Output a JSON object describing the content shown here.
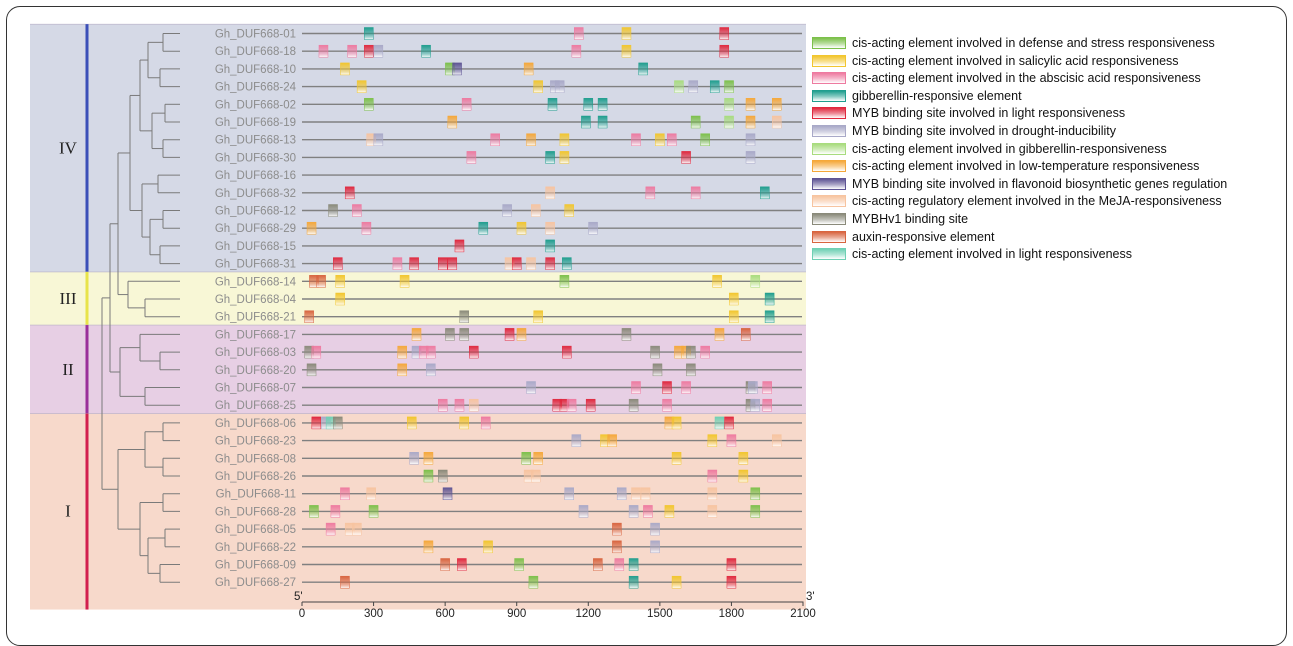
{
  "groups": [
    {
      "label": "IV",
      "color": "#d5d9e6",
      "bar": "#3b4fb8"
    },
    {
      "label": "III",
      "color": "#f8f7d6",
      "bar": "#e8e34a"
    },
    {
      "label": "II",
      "color": "#e7cfe4",
      "bar": "#9a2f9a"
    },
    {
      "label": "I",
      "color": "#f7d9cb",
      "bar": "#d21f4e"
    }
  ],
  "axis": {
    "start_label": "5'",
    "end_label": "3'",
    "min": 0,
    "max": 2100,
    "ticks": [
      "0",
      "300",
      "600",
      "900",
      "1200",
      "1500",
      "1800",
      "2100"
    ]
  },
  "legend": [
    {
      "key": "defense",
      "label": "cis-acting element involved in defense and stress responsiveness",
      "color": "#7cc04a"
    },
    {
      "key": "sa",
      "label": "cis-acting element involved in salicylic acid responsiveness",
      "color": "#f2c62e"
    },
    {
      "key": "aba",
      "label": "cis-acting element involved in the abscisic acid responsiveness",
      "color": "#ee7aa0"
    },
    {
      "key": "ga",
      "label": "gibberellin-responsive element",
      "color": "#1f9e8e"
    },
    {
      "key": "mybl",
      "label": "MYB binding site involved in light responsiveness",
      "color": "#e0283e"
    },
    {
      "key": "mybd",
      "label": "MYB binding site involved in drought-inducibility",
      "color": "#a9a9c8"
    },
    {
      "key": "gar",
      "label": "cis-acting element involved in gibberellin-responsiveness",
      "color": "#a8dc7e"
    },
    {
      "key": "lt",
      "label": "cis-acting element involved in low-temperature responsiveness",
      "color": "#f5a83a"
    },
    {
      "key": "mybf",
      "label": "MYB binding site involved in flavonoid biosynthetic genes regulation",
      "color": "#5e5494"
    },
    {
      "key": "meja",
      "label": "cis-acting regulatory element involved in the MeJA-responsiveness",
      "color": "#f7c4a0"
    },
    {
      "key": "mybh",
      "label": "MYBHv1 binding site",
      "color": "#8a8a7a"
    },
    {
      "key": "aux",
      "label": "auxin-responsive element",
      "color": "#d8643f"
    },
    {
      "key": "light",
      "label": "cis-acting element involved in light responsiveness",
      "color": "#6fd0b4"
    }
  ],
  "genes": [
    {
      "name": "Gh_DUF668-01",
      "group": "IV",
      "elements": [
        [
          "ga",
          280
        ],
        [
          "aba",
          1160
        ],
        [
          "sa",
          1360
        ],
        [
          "mybl",
          1770
        ]
      ]
    },
    {
      "name": "Gh_DUF668-18",
      "group": "IV",
      "elements": [
        [
          "aba",
          90
        ],
        [
          "aba",
          210
        ],
        [
          "mybl",
          280
        ],
        [
          "mybd",
          320
        ],
        [
          "ga",
          520
        ],
        [
          "aba",
          1150
        ],
        [
          "sa",
          1360
        ],
        [
          "mybl",
          1770
        ]
      ]
    },
    {
      "name": "Gh_DUF668-10",
      "group": "IV",
      "elements": [
        [
          "sa",
          180
        ],
        [
          "defense",
          620
        ],
        [
          "mybf",
          650
        ],
        [
          "lt",
          950
        ],
        [
          "ga",
          1430
        ]
      ]
    },
    {
      "name": "Gh_DUF668-24",
      "group": "IV",
      "elements": [
        [
          "sa",
          250
        ],
        [
          "sa",
          990
        ],
        [
          "mybd",
          1060
        ],
        [
          "mybd",
          1080
        ],
        [
          "gar",
          1580
        ],
        [
          "mybd",
          1640
        ],
        [
          "ga",
          1730
        ],
        [
          "defense",
          1790
        ]
      ]
    },
    {
      "name": "Gh_DUF668-02",
      "group": "IV",
      "elements": [
        [
          "defense",
          280
        ],
        [
          "aba",
          690
        ],
        [
          "ga",
          1050
        ],
        [
          "ga",
          1200
        ],
        [
          "ga",
          1260
        ],
        [
          "gar",
          1790
        ],
        [
          "lt",
          1880
        ],
        [
          "lt",
          1990
        ]
      ]
    },
    {
      "name": "Gh_DUF668-19",
      "group": "IV",
      "elements": [
        [
          "lt",
          630
        ],
        [
          "ga",
          1190
        ],
        [
          "ga",
          1260
        ],
        [
          "defense",
          1650
        ],
        [
          "gar",
          1790
        ],
        [
          "lt",
          1880
        ],
        [
          "meja",
          1990
        ]
      ]
    },
    {
      "name": "Gh_DUF668-13",
      "group": "IV",
      "elements": [
        [
          "meja",
          290
        ],
        [
          "mybd",
          320
        ],
        [
          "aba",
          810
        ],
        [
          "lt",
          960
        ],
        [
          "sa",
          1100
        ],
        [
          "aba",
          1400
        ],
        [
          "sa",
          1500
        ],
        [
          "aba",
          1550
        ],
        [
          "defense",
          1690
        ],
        [
          "mybd",
          1880
        ]
      ]
    },
    {
      "name": "Gh_DUF668-30",
      "group": "IV",
      "elements": [
        [
          "aba",
          710
        ],
        [
          "ga",
          1040
        ],
        [
          "sa",
          1100
        ],
        [
          "mybl",
          1610
        ],
        [
          "mybd",
          1880
        ]
      ]
    },
    {
      "name": "Gh_DUF668-16",
      "group": "IV",
      "elements": []
    },
    {
      "name": "Gh_DUF668-32",
      "group": "IV",
      "elements": [
        [
          "mybl",
          200
        ],
        [
          "meja",
          1040
        ],
        [
          "aba",
          1460
        ],
        [
          "aba",
          1650
        ],
        [
          "ga",
          1940
        ]
      ]
    },
    {
      "name": "Gh_DUF668-12",
      "group": "IV",
      "elements": [
        [
          "mybh",
          130
        ],
        [
          "aba",
          230
        ],
        [
          "mybd",
          860
        ],
        [
          "meja",
          980
        ],
        [
          "sa",
          1120
        ]
      ]
    },
    {
      "name": "Gh_DUF668-29",
      "group": "IV",
      "elements": [
        [
          "lt",
          40
        ],
        [
          "aba",
          270
        ],
        [
          "ga",
          760
        ],
        [
          "sa",
          920
        ],
        [
          "meja",
          1040
        ],
        [
          "mybd",
          1220
        ]
      ]
    },
    {
      "name": "Gh_DUF668-15",
      "group": "IV",
      "elements": [
        [
          "mybl",
          660
        ],
        [
          "ga",
          1040
        ]
      ]
    },
    {
      "name": "Gh_DUF668-31",
      "group": "IV",
      "elements": [
        [
          "mybl",
          150
        ],
        [
          "aba",
          400
        ],
        [
          "mybl",
          470
        ],
        [
          "mybl",
          590
        ],
        [
          "mybl",
          630
        ],
        [
          "meja",
          870
        ],
        [
          "mybl",
          900
        ],
        [
          "meja",
          960
        ],
        [
          "mybl",
          1040
        ],
        [
          "ga",
          1110
        ]
      ]
    },
    {
      "name": "Gh_DUF668-14",
      "group": "III",
      "elements": [
        [
          "aux",
          50
        ],
        [
          "aux",
          80
        ],
        [
          "sa",
          160
        ],
        [
          "sa",
          430
        ],
        [
          "defense",
          1100
        ],
        [
          "sa",
          1740
        ],
        [
          "gar",
          1900
        ]
      ]
    },
    {
      "name": "Gh_DUF668-04",
      "group": "III",
      "elements": [
        [
          "sa",
          160
        ],
        [
          "sa",
          1810
        ],
        [
          "ga",
          1960
        ]
      ]
    },
    {
      "name": "Gh_DUF668-21",
      "group": "III",
      "elements": [
        [
          "aux",
          30
        ],
        [
          "mybh",
          680
        ],
        [
          "sa",
          990
        ],
        [
          "sa",
          1810
        ],
        [
          "ga",
          1960
        ]
      ]
    },
    {
      "name": "Gh_DUF668-17",
      "group": "II",
      "elements": [
        [
          "lt",
          480
        ],
        [
          "mybh",
          620
        ],
        [
          "mybh",
          680
        ],
        [
          "mybl",
          870
        ],
        [
          "lt",
          920
        ],
        [
          "mybh",
          1360
        ],
        [
          "lt",
          1750
        ],
        [
          "aux",
          1860
        ]
      ]
    },
    {
      "name": "Gh_DUF668-03",
      "group": "II",
      "elements": [
        [
          "mybh",
          30
        ],
        [
          "aba",
          60
        ],
        [
          "lt",
          420
        ],
        [
          "mybd",
          480
        ],
        [
          "aba",
          510
        ],
        [
          "aba",
          540
        ],
        [
          "mybl",
          720
        ],
        [
          "mybl",
          1110
        ],
        [
          "mybh",
          1480
        ],
        [
          "lt",
          1580
        ],
        [
          "lt",
          1610
        ],
        [
          "mybh",
          1630
        ],
        [
          "aba",
          1690
        ]
      ]
    },
    {
      "name": "Gh_DUF668-20",
      "group": "II",
      "elements": [
        [
          "mybh",
          40
        ],
        [
          "lt",
          420
        ],
        [
          "mybd",
          540
        ],
        [
          "mybh",
          1490
        ],
        [
          "mybh",
          1630
        ]
      ]
    },
    {
      "name": "Gh_DUF668-07",
      "group": "II",
      "elements": [
        [
          "mybd",
          960
        ],
        [
          "aba",
          1400
        ],
        [
          "mybl",
          1530
        ],
        [
          "aba",
          1610
        ],
        [
          "mybh",
          1880
        ],
        [
          "mybd",
          1890
        ],
        [
          "aba",
          1950
        ]
      ]
    },
    {
      "name": "Gh_DUF668-25",
      "group": "II",
      "elements": [
        [
          "aba",
          590
        ],
        [
          "aba",
          660
        ],
        [
          "meja",
          720
        ],
        [
          "mybl",
          1070
        ],
        [
          "mybl",
          1100
        ],
        [
          "aba",
          1130
        ],
        [
          "mybl",
          1210
        ],
        [
          "mybh",
          1390
        ],
        [
          "aba",
          1530
        ],
        [
          "mybh",
          1880
        ],
        [
          "mybd",
          1900
        ],
        [
          "aba",
          1950
        ]
      ]
    },
    {
      "name": "Gh_DUF668-06",
      "group": "I",
      "elements": [
        [
          "mybl",
          60
        ],
        [
          "mybd",
          100
        ],
        [
          "light",
          120
        ],
        [
          "mybh",
          150
        ],
        [
          "sa",
          460
        ],
        [
          "sa",
          680
        ],
        [
          "aba",
          770
        ],
        [
          "lt",
          1540
        ],
        [
          "sa",
          1570
        ],
        [
          "light",
          1750
        ],
        [
          "mybl",
          1790
        ]
      ]
    },
    {
      "name": "Gh_DUF668-23",
      "group": "I",
      "elements": [
        [
          "mybd",
          1150
        ],
        [
          "sa",
          1270
        ],
        [
          "lt",
          1300
        ],
        [
          "sa",
          1720
        ],
        [
          "aba",
          1800
        ],
        [
          "meja",
          1990
        ]
      ]
    },
    {
      "name": "Gh_DUF668-08",
      "group": "I",
      "elements": [
        [
          "mybd",
          470
        ],
        [
          "lt",
          530
        ],
        [
          "defense",
          940
        ],
        [
          "lt",
          990
        ],
        [
          "sa",
          1570
        ],
        [
          "sa",
          1850
        ]
      ]
    },
    {
      "name": "Gh_DUF668-26",
      "group": "I",
      "elements": [
        [
          "defense",
          530
        ],
        [
          "mybh",
          590
        ],
        [
          "meja",
          950
        ],
        [
          "meja",
          980
        ],
        [
          "aba",
          1720
        ],
        [
          "sa",
          1850
        ]
      ]
    },
    {
      "name": "Gh_DUF668-11",
      "group": "I",
      "elements": [
        [
          "aba",
          180
        ],
        [
          "meja",
          290
        ],
        [
          "mybf",
          610
        ],
        [
          "mybd",
          1120
        ],
        [
          "mybd",
          1340
        ],
        [
          "meja",
          1400
        ],
        [
          "meja",
          1440
        ],
        [
          "meja",
          1720
        ],
        [
          "defense",
          1900
        ]
      ]
    },
    {
      "name": "Gh_DUF668-28",
      "group": "I",
      "elements": [
        [
          "defense",
          50
        ],
        [
          "aba",
          140
        ],
        [
          "defense",
          300
        ],
        [
          "mybd",
          1180
        ],
        [
          "mybd",
          1390
        ],
        [
          "aba",
          1450
        ],
        [
          "sa",
          1540
        ],
        [
          "meja",
          1720
        ],
        [
          "defense",
          1900
        ]
      ]
    },
    {
      "name": "Gh_DUF668-05",
      "group": "I",
      "elements": [
        [
          "aba",
          120
        ],
        [
          "meja",
          200
        ],
        [
          "meja",
          230
        ],
        [
          "aux",
          1320
        ],
        [
          "mybd",
          1480
        ]
      ]
    },
    {
      "name": "Gh_DUF668-22",
      "group": "I",
      "elements": [
        [
          "lt",
          530
        ],
        [
          "sa",
          780
        ],
        [
          "aux",
          1320
        ],
        [
          "mybd",
          1480
        ]
      ]
    },
    {
      "name": "Gh_DUF668-09",
      "group": "I",
      "elements": [
        [
          "aux",
          600
        ],
        [
          "mybl",
          670
        ],
        [
          "defense",
          910
        ],
        [
          "aux",
          1240
        ],
        [
          "aba",
          1330
        ],
        [
          "ga",
          1390
        ],
        [
          "mybl",
          1800
        ]
      ]
    },
    {
      "name": "Gh_DUF668-27",
      "group": "I",
      "elements": [
        [
          "aux",
          180
        ],
        [
          "defense",
          970
        ],
        [
          "ga",
          1390
        ],
        [
          "sa",
          1570
        ],
        [
          "mybl",
          1800
        ]
      ]
    }
  ]
}
